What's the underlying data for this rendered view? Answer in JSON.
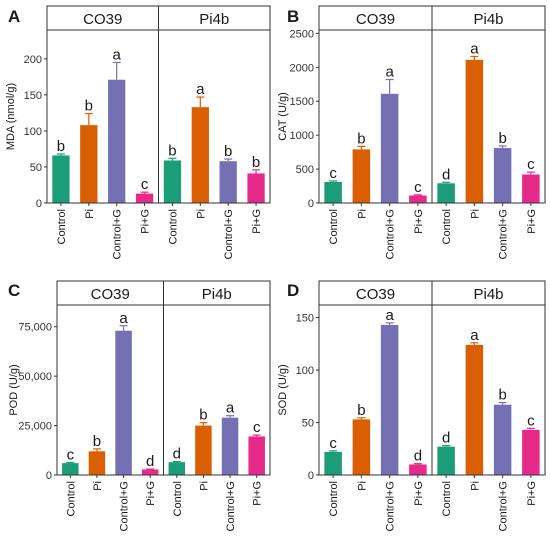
{
  "colors": {
    "Control": "#1b9e77",
    "Pi": "#d95f02",
    "Control+G": "#7570b3",
    "Pi+G": "#e7298a",
    "strip_fill": "#ffffff",
    "frame": "#333333"
  },
  "chart_data": [
    {
      "type": "bar",
      "panel_label": "A",
      "ylabel": "MDA (nmol/g)",
      "ylim": [
        0,
        240
      ],
      "yticks": [
        0,
        50,
        100,
        150,
        200
      ],
      "ytick_labels": [
        "0",
        "50",
        "100",
        "150",
        "200"
      ],
      "categories": [
        "Control",
        "Pi",
        "Control+G",
        "Pi+G"
      ],
      "facets": [
        {
          "name": "CO39",
          "values": [
            66,
            108,
            171,
            13
          ],
          "errors": [
            2,
            16,
            24,
            2
          ],
          "letters": [
            "b",
            "b",
            "a",
            "c"
          ]
        },
        {
          "name": "Pi4b",
          "values": [
            59,
            133,
            58,
            41
          ],
          "errors": [
            3,
            14,
            3,
            5
          ],
          "letters": [
            "b",
            "a",
            "b",
            "b"
          ]
        }
      ]
    },
    {
      "type": "bar",
      "panel_label": "B",
      "ylabel": "CAT (U/g)",
      "ylim": [
        0,
        2550
      ],
      "yticks": [
        0,
        500,
        1000,
        1500,
        2000,
        2500
      ],
      "ytick_labels": [
        "0",
        "500",
        "1000",
        "1500",
        "2000",
        "2500"
      ],
      "categories": [
        "Control",
        "Pi",
        "Control+G",
        "Pi+G"
      ],
      "facets": [
        {
          "name": "CO39",
          "values": [
            310,
            790,
            1610,
            110
          ],
          "errors": [
            15,
            45,
            210,
            10
          ],
          "letters": [
            "c",
            "b",
            "a",
            "c"
          ]
        },
        {
          "name": "Pi4b",
          "values": [
            290,
            2110,
            810,
            420
          ],
          "errors": [
            15,
            50,
            30,
            35
          ],
          "letters": [
            "d",
            "a",
            "b",
            "c"
          ]
        }
      ]
    },
    {
      "type": "bar",
      "panel_label": "C",
      "ylabel": "POD (U/g)",
      "ylim": [
        0,
        86000
      ],
      "yticks": [
        0,
        25000,
        50000,
        75000
      ],
      "ytick_labels": [
        "0",
        "25,000",
        "50,000",
        "75,000"
      ],
      "categories": [
        "Control",
        "Pi",
        "Control+G",
        "Pi+G"
      ],
      "facets": [
        {
          "name": "CO39",
          "values": [
            6000,
            12000,
            73000,
            2800
          ],
          "errors": [
            300,
            1200,
            2500,
            200
          ],
          "letters": [
            "c",
            "b",
            "a",
            "d"
          ]
        },
        {
          "name": "Pi4b",
          "values": [
            6500,
            25000,
            29000,
            19500
          ],
          "errors": [
            300,
            1500,
            1000,
            700
          ],
          "letters": [
            "d",
            "b",
            "a",
            "c"
          ]
        }
      ]
    },
    {
      "type": "bar",
      "panel_label": "D",
      "ylabel": "SOD (U/g)",
      "ylim": [
        0,
        162
      ],
      "yticks": [
        0,
        50,
        100,
        150
      ],
      "ytick_labels": [
        "0",
        "50",
        "100",
        "150"
      ],
      "categories": [
        "Control",
        "Pi",
        "Control+G",
        "Pi+G"
      ],
      "facets": [
        {
          "name": "CO39",
          "values": [
            22,
            53,
            143,
            10
          ],
          "errors": [
            1,
            1.5,
            2,
            0.8
          ],
          "letters": [
            "c",
            "b",
            "a",
            "d"
          ]
        },
        {
          "name": "Pi4b",
          "values": [
            27,
            124,
            67,
            43
          ],
          "errors": [
            1,
            2,
            2,
            1.5
          ],
          "letters": [
            "d",
            "a",
            "b",
            "c"
          ]
        }
      ]
    }
  ]
}
